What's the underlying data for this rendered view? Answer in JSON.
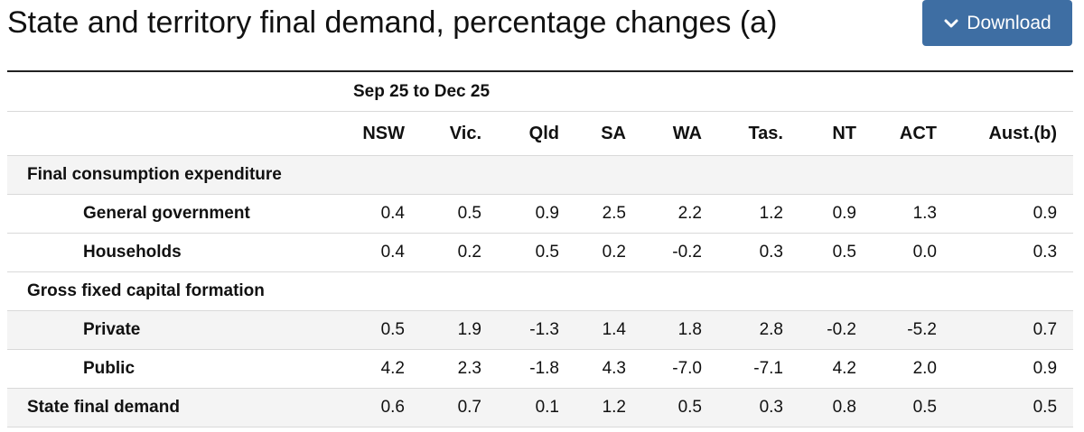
{
  "title": "State and territory final demand, percentage changes (a)",
  "download": {
    "label": "Download",
    "icon": "chevron-down-icon",
    "color": "#3e6ea3"
  },
  "table": {
    "period": "Sep 25 to Dec 25",
    "columns": [
      "NSW",
      "Vic.",
      "Qld",
      "SA",
      "WA",
      "Tas.",
      "NT",
      "ACT",
      "Aust.(b)"
    ],
    "rows": [
      {
        "label": "Final consumption expenditure",
        "level": 0,
        "section": true,
        "values": [
          "",
          "",
          "",
          "",
          "",
          "",
          "",
          "",
          ""
        ]
      },
      {
        "label": "General government",
        "level": 1,
        "section": false,
        "values": [
          "0.4",
          "0.5",
          "0.9",
          "2.5",
          "2.2",
          "1.2",
          "0.9",
          "1.3",
          "0.9"
        ]
      },
      {
        "label": "Households",
        "level": 1,
        "section": false,
        "values": [
          "0.4",
          "0.2",
          "0.5",
          "0.2",
          "-0.2",
          "0.3",
          "0.5",
          "0.0",
          "0.3"
        ]
      },
      {
        "label": "Gross fixed capital formation",
        "level": 0,
        "section": false,
        "values": [
          "",
          "",
          "",
          "",
          "",
          "",
          "",
          "",
          ""
        ]
      },
      {
        "label": "Private",
        "level": 1,
        "section": true,
        "values": [
          "0.5",
          "1.9",
          "-1.3",
          "1.4",
          "1.8",
          "2.8",
          "-0.2",
          "-5.2",
          "0.7"
        ]
      },
      {
        "label": "Public",
        "level": 1,
        "section": false,
        "values": [
          "4.2",
          "2.3",
          "-1.8",
          "4.3",
          "-7.0",
          "-7.1",
          "4.2",
          "2.0",
          "0.9"
        ]
      },
      {
        "label": "State final demand",
        "level": 0,
        "section": true,
        "values": [
          "0.6",
          "0.7",
          "0.1",
          "1.2",
          "0.5",
          "0.3",
          "0.8",
          "0.5",
          "0.5"
        ]
      }
    ]
  }
}
